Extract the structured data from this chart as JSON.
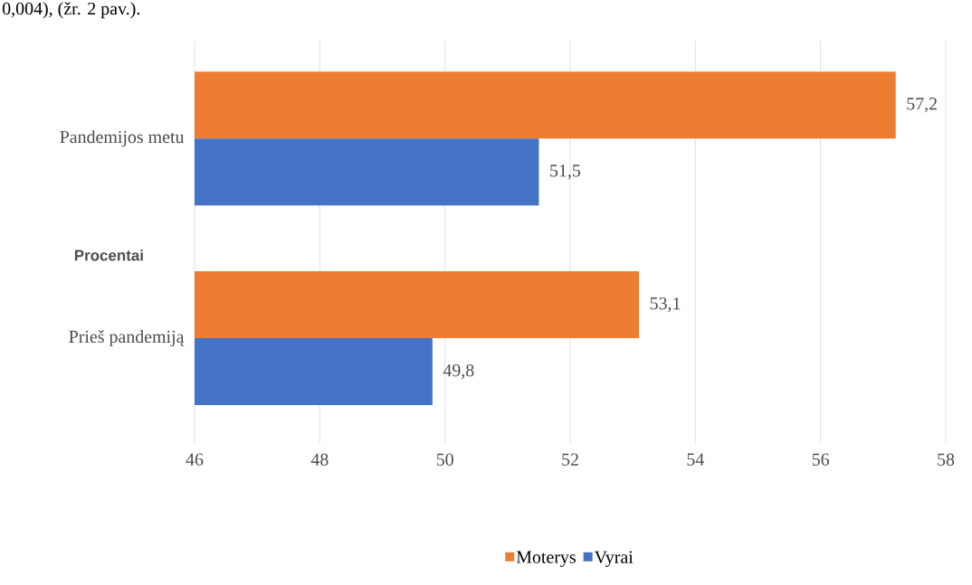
{
  "chart_data": {
    "type": "bar",
    "orientation": "horizontal",
    "annotations": [
      "0,004), (žr. 2 pav.)."
    ],
    "ylabel": "Procentai",
    "categories": [
      "Pandemijos metu",
      "Prieš pandemiją"
    ],
    "series": [
      {
        "name": "Moterys",
        "color": "#ed7d31",
        "values": [
          57.2,
          53.1
        ],
        "value_labels": [
          "57,2",
          "53,1"
        ]
      },
      {
        "name": "Vyrai",
        "color": "#4472c4",
        "values": [
          51.5,
          49.8
        ],
        "value_labels": [
          "51,5",
          "49,8"
        ]
      }
    ],
    "xlim": [
      46,
      58
    ],
    "xticks": [
      46,
      48,
      50,
      52,
      54,
      56,
      58
    ],
    "grid": "x",
    "legend": "bottom"
  }
}
